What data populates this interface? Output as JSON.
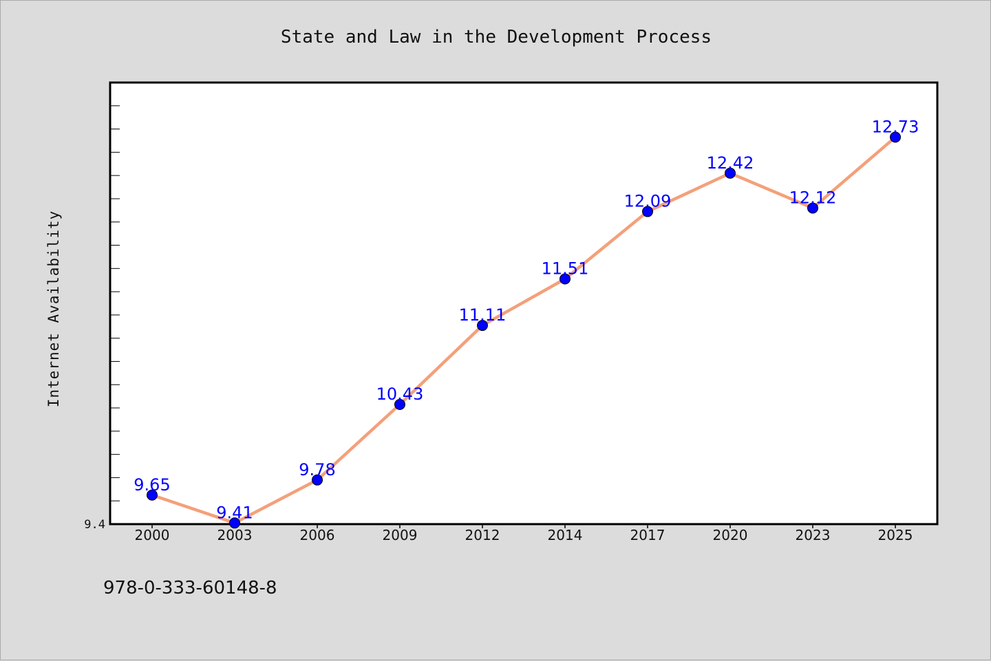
{
  "chart_data": {
    "type": "line",
    "title": "State and Law in the Development Process",
    "xlabel": "",
    "ylabel": "Internet Availability",
    "categories": [
      "2000",
      "2003",
      "2006",
      "2009",
      "2012",
      "2014",
      "2017",
      "2020",
      "2023",
      "2025"
    ],
    "series": [
      {
        "values": [
          9.65,
          9.41,
          9.78,
          10.43,
          11.11,
          11.51,
          12.09,
          12.42,
          12.12,
          12.73
        ],
        "labels": [
          "9.65",
          "9.41",
          "9.78",
          "10.43",
          "11.11",
          "11.51",
          "12.09",
          "12.42",
          "12.12",
          "12.73"
        ],
        "line_color": "#f4a07a",
        "marker_color": "#0000ff"
      }
    ],
    "ylim": [
      9.4,
      13.2
    ],
    "y_tick_labels": [
      "9.4"
    ],
    "grid": false,
    "legend": "none"
  },
  "footer": {
    "isbn": "978-0-333-60148-8"
  },
  "colors": {
    "background": "#dcdcdc",
    "plot_background": "#ffffff",
    "data_label": "#0000ff"
  }
}
